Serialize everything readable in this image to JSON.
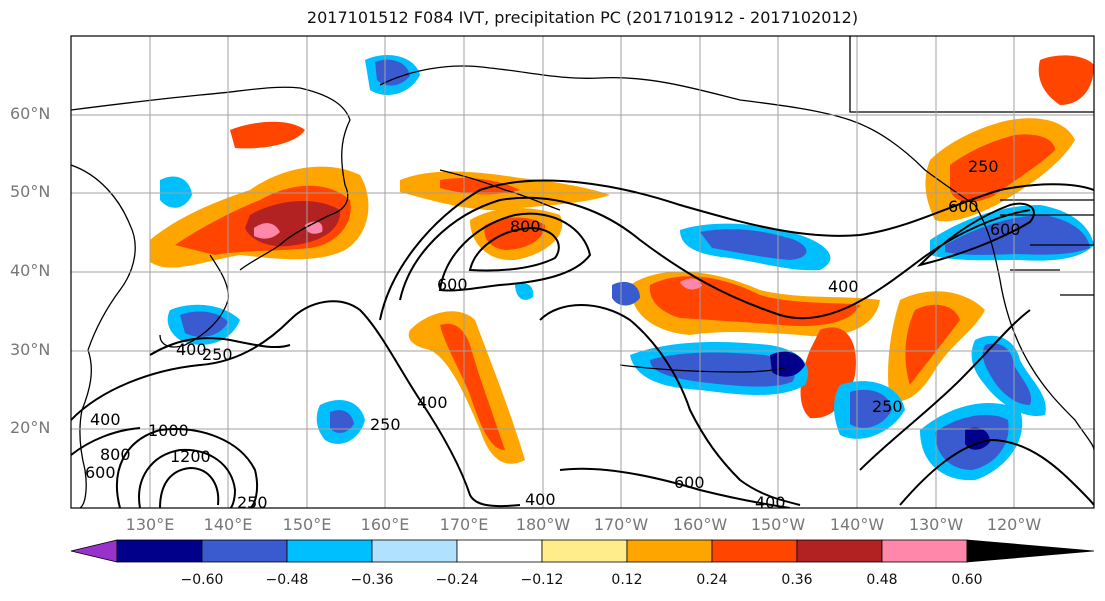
{
  "title": "2017101512 F084 IVT, precipitation PC (2017101912 - 2017102012)",
  "lat_labels": [
    "60°N",
    "50°N",
    "40°N",
    "30°N",
    "20°N"
  ],
  "lon_labels": [
    "130°E",
    "140°E",
    "150°E",
    "160°E",
    "170°E",
    "180°W",
    "170°W",
    "160°W",
    "150°W",
    "140°W",
    "130°W",
    "120°W"
  ],
  "contour_labels": [
    "800",
    "600",
    "400",
    "250",
    "400",
    "600",
    "250",
    "400",
    "250",
    "1000",
    "1200",
    "800",
    "600",
    "400",
    "250",
    "400",
    "400",
    "600",
    "250",
    "600"
  ],
  "colorbar": {
    "ticks": [
      "−0.60",
      "−0.48",
      "−0.36",
      "−0.24",
      "−0.12",
      "0.12",
      "0.24",
      "0.36",
      "0.48",
      "0.60"
    ],
    "colors": [
      "#9932cc",
      "#00008b",
      "#3a5bd0",
      "#00bfff",
      "#b0e2ff",
      "#ffffff",
      "#ffec8b",
      "#ffa500",
      "#ff4500",
      "#b22222",
      "#ff88aa"
    ]
  },
  "colors": {
    "land": "#000000",
    "grid": "#a0a0a0",
    "ivt_contour": "#000000"
  }
}
